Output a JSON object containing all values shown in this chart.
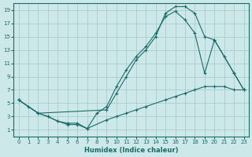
{
  "xlabel": "Humidex (Indice chaleur)",
  "bg_color": "#cde8e8",
  "grid_color": "#a8cccc",
  "line_color": "#1a6b6b",
  "xlim": [
    -0.5,
    23.5
  ],
  "ylim": [
    0,
    20
  ],
  "xticks": [
    0,
    1,
    2,
    3,
    4,
    5,
    6,
    7,
    8,
    9,
    10,
    11,
    12,
    13,
    14,
    15,
    16,
    17,
    18,
    19,
    20,
    21,
    22,
    23
  ],
  "yticks": [
    1,
    3,
    5,
    7,
    9,
    11,
    13,
    15,
    17,
    19
  ],
  "line1_x": [
    0,
    1,
    2,
    3,
    4,
    5,
    6,
    7,
    9,
    10,
    11,
    12,
    13,
    15,
    16,
    17,
    18,
    19,
    20,
    21,
    22,
    23
  ],
  "line1_y": [
    5.5,
    4.5,
    3.5,
    3.0,
    2.3,
    2.0,
    2.0,
    1.2,
    2.5,
    3.0,
    3.5,
    4.0,
    4.5,
    5.5,
    6.0,
    6.5,
    7.0,
    7.5,
    7.5,
    7.5,
    7.0,
    7.0
  ],
  "line2_x": [
    0,
    2,
    3,
    4,
    5,
    6,
    7,
    8,
    9,
    10,
    11,
    12,
    13,
    14,
    15,
    16,
    17,
    18,
    19,
    20,
    21,
    22,
    23
  ],
  "line2_y": [
    5.5,
    3.5,
    3.0,
    2.3,
    1.8,
    1.8,
    1.2,
    3.5,
    4.5,
    7.5,
    10.0,
    12.0,
    13.5,
    15.5,
    18.0,
    18.8,
    17.5,
    15.5,
    9.5,
    14.5,
    12.0,
    9.5,
    7.0
  ],
  "line3_x": [
    0,
    2,
    9,
    10,
    11,
    12,
    13,
    14,
    15,
    16,
    17,
    18,
    19,
    20,
    22,
    23
  ],
  "line3_y": [
    5.5,
    3.5,
    4.0,
    6.5,
    9.0,
    11.5,
    13.0,
    15.0,
    18.5,
    19.5,
    19.5,
    18.5,
    15.0,
    14.5,
    9.5,
    7.0
  ]
}
